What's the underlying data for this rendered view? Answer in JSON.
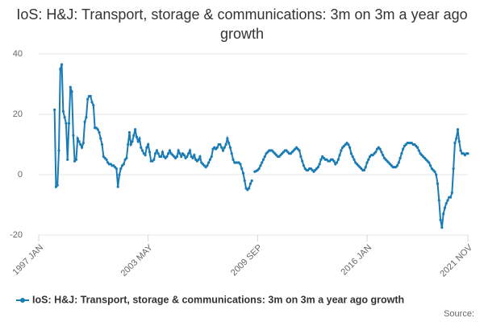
{
  "chart_data": {
    "type": "line",
    "title": "IoS: H&J: Transport, storage & communications: 3m on 3m a year ago growth",
    "source": "Source:",
    "categories": [
      "1997 JAN",
      null,
      null,
      null,
      null,
      null,
      null,
      null,
      null,
      null,
      null,
      null,
      null,
      null,
      null,
      null,
      null,
      null,
      null,
      null,
      null,
      null,
      null,
      null,
      null,
      null,
      null,
      null,
      null,
      null,
      null,
      null,
      null,
      null,
      null,
      null,
      null,
      null,
      null,
      null,
      null,
      null,
      null,
      null,
      null,
      null,
      null,
      null,
      null,
      null,
      null,
      null,
      null,
      null,
      null,
      null,
      null,
      null,
      null,
      null,
      null,
      null,
      null,
      null,
      null,
      null,
      null,
      null,
      null,
      null,
      null,
      null,
      null,
      null,
      null,
      null,
      "2003 MAY",
      null,
      null,
      null,
      null,
      null,
      null,
      null,
      null,
      null,
      null,
      null,
      null,
      null,
      null,
      null,
      null,
      null,
      null,
      null,
      null,
      null,
      null,
      null,
      null,
      null,
      null,
      null,
      null,
      null,
      null,
      null,
      null,
      null,
      null,
      null,
      null,
      null,
      null,
      null,
      null,
      null,
      null,
      null,
      null,
      null,
      null,
      null,
      null,
      null,
      null,
      null,
      null,
      null,
      null,
      null,
      null,
      null,
      null,
      null,
      null,
      null,
      null,
      null,
      null,
      null,
      null,
      null,
      null,
      null,
      null,
      null,
      null,
      null,
      null,
      null,
      "2009 SEP",
      null,
      null,
      null,
      null,
      null,
      null,
      null,
      null,
      null,
      null,
      null,
      null,
      null,
      null,
      null,
      null,
      null,
      null,
      null,
      null,
      null,
      null,
      null,
      null,
      null,
      null,
      null,
      null,
      null,
      null,
      null,
      null,
      null,
      null,
      null,
      null,
      null,
      null,
      null,
      null,
      null,
      null,
      null,
      null,
      null,
      null,
      null,
      null,
      null,
      null,
      null,
      null,
      null,
      null,
      null,
      null,
      null,
      null,
      null,
      null,
      null,
      null,
      null,
      null,
      null,
      null,
      null,
      null,
      null,
      null,
      null,
      null,
      null,
      null,
      null,
      "2016 JAN",
      null,
      null,
      null,
      null,
      null,
      null,
      null,
      null,
      null,
      null,
      null,
      null,
      null,
      null,
      null,
      null,
      null,
      null,
      null,
      null,
      null,
      null,
      null,
      null,
      null,
      null,
      null,
      null,
      null,
      null,
      null,
      null,
      null,
      null,
      null,
      null,
      null,
      null,
      null,
      null,
      null,
      null,
      null,
      null,
      null,
      null,
      null,
      null,
      null,
      null,
      null,
      null,
      null,
      null,
      null,
      null,
      null,
      null,
      null,
      null,
      null,
      null,
      null,
      null,
      null,
      null,
      null,
      null,
      null,
      "2021 NOV"
    ],
    "series": [
      {
        "name": "IoS: H&J: Transport, storage & communications: 3m on 3m a year ago growth",
        "color": "#1a7bb5",
        "values": [
          null,
          null,
          null,
          null,
          null,
          null,
          null,
          null,
          null,
          null,
          null,
          21.5,
          -4,
          -3.5,
          8,
          35,
          36.5,
          21,
          19,
          17,
          5,
          17,
          29,
          27.5,
          13,
          4.5,
          5,
          12,
          11,
          10,
          9,
          10.5,
          17.5,
          19,
          25,
          26,
          26,
          24,
          23,
          15.5,
          15.5,
          15,
          14,
          12,
          10,
          6,
          5.5,
          5,
          4,
          3.5,
          3.5,
          3,
          3,
          2.5,
          2,
          -4,
          0,
          2,
          3,
          3.5,
          5,
          5.5,
          10,
          14,
          10,
          11,
          13,
          15,
          12.5,
          11,
          12,
          9,
          8,
          7,
          6.5,
          9,
          10,
          7.5,
          4.5,
          4.5,
          5,
          7,
          8,
          7,
          6,
          6,
          7.5,
          6,
          5.5,
          6,
          7,
          8,
          7,
          6.5,
          6,
          5.5,
          6,
          8,
          7,
          6,
          7,
          6.5,
          5.5,
          6,
          7,
          8,
          6,
          5.5,
          6.5,
          5,
          4.5,
          5,
          6,
          4,
          3.5,
          3,
          2.5,
          3,
          4,
          5,
          6,
          8.5,
          9,
          8.5,
          9,
          10,
          10,
          9,
          8,
          9,
          10,
          12,
          10.5,
          9,
          7,
          5,
          4,
          4,
          4,
          4,
          3.5,
          2,
          0.5,
          -2,
          -4.5,
          -5,
          -4.5,
          -3,
          -2,
          null,
          1,
          1.2,
          1.5,
          2,
          3,
          4,
          5,
          6,
          7,
          7.5,
          8,
          8,
          8,
          7.5,
          7,
          6.5,
          6,
          6,
          6.5,
          7,
          7.5,
          8,
          8,
          7.5,
          7,
          7,
          7.5,
          8,
          8.5,
          9,
          8.5,
          8,
          6,
          4.5,
          3,
          2,
          1.5,
          1.5,
          2,
          2,
          1.5,
          1,
          1.5,
          2,
          2.5,
          3.5,
          5,
          6,
          5.5,
          5,
          5,
          4.5,
          4.5,
          5,
          5,
          4.5,
          3.5,
          4,
          5,
          6.5,
          8,
          9,
          9.5,
          10,
          10.5,
          10,
          9,
          7,
          6,
          5,
          4,
          3.5,
          3,
          2.5,
          2,
          1.5,
          1.5,
          2.5,
          4,
          5,
          6,
          6.5,
          6.5,
          7,
          7.5,
          8.5,
          9,
          8.5,
          7.5,
          6.5,
          5.5,
          5,
          4.5,
          4,
          3.5,
          3,
          2.5,
          2.5,
          2.5,
          3,
          4,
          5.5,
          7,
          8.5,
          9.5,
          10,
          10.5,
          10.5,
          10.5,
          10.5,
          10,
          10,
          9.5,
          9,
          8,
          7,
          6.5,
          6,
          5.5,
          5,
          4.5,
          4,
          3,
          2,
          1.5,
          1,
          0,
          -3,
          -8.5,
          -15,
          -17.5,
          -13,
          -11,
          -9.5,
          -8.5,
          -7.5,
          -7.5,
          -6,
          2,
          10.5,
          12,
          15,
          11,
          8,
          7,
          7,
          6.5,
          7,
          7
        ]
      }
    ],
    "ylim": [
      -20,
      40
    ],
    "yticks": [
      -20,
      0,
      20,
      40
    ],
    "grid": true
  }
}
